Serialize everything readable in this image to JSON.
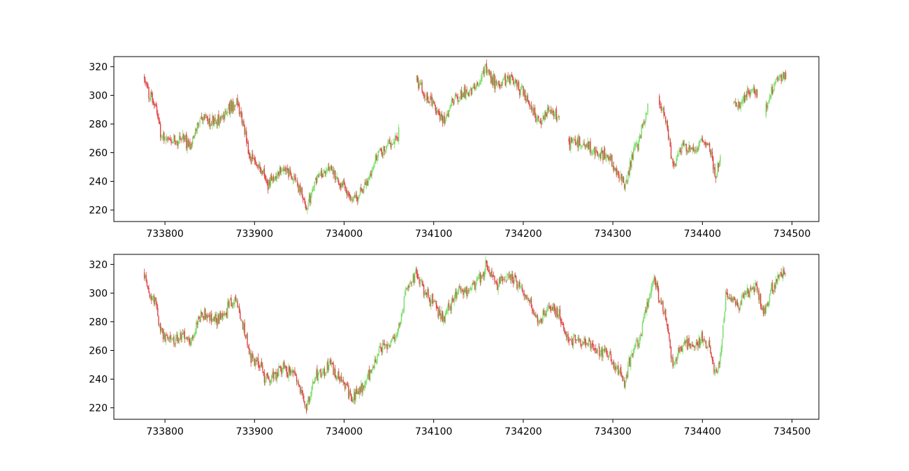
{
  "colors": {
    "up": "#77dd66",
    "down": "#dd4444",
    "axes": "#000000"
  },
  "chart_data": [
    {
      "type": "candlestick",
      "title": "",
      "xlabel": "",
      "ylabel": "",
      "xlim": [
        733743,
        734530
      ],
      "ylim": [
        212,
        327
      ],
      "x_ticks": [
        733800,
        733900,
        734000,
        734100,
        734200,
        734300,
        734400,
        734500
      ],
      "y_ticks": [
        220,
        240,
        260,
        280,
        300,
        320
      ],
      "x_range": [
        733777,
        734493
      ],
      "gaps": [
        [
          734062,
          734080
        ],
        [
          734241,
          734250
        ],
        [
          734340,
          734351
        ],
        [
          734421,
          734434
        ],
        [
          734462,
          734470
        ]
      ],
      "anchors": [
        [
          733777,
          314
        ],
        [
          733782,
          300
        ],
        [
          733790,
          292
        ],
        [
          733795,
          272
        ],
        [
          733805,
          268
        ],
        [
          733820,
          270
        ],
        [
          733828,
          265
        ],
        [
          733840,
          285
        ],
        [
          733855,
          281
        ],
        [
          733868,
          288
        ],
        [
          733880,
          295
        ],
        [
          733885,
          283
        ],
        [
          733895,
          257
        ],
        [
          733905,
          250
        ],
        [
          733915,
          238
        ],
        [
          733930,
          248
        ],
        [
          733945,
          244
        ],
        [
          733958,
          220
        ],
        [
          733968,
          242
        ],
        [
          733985,
          250
        ],
        [
          733998,
          238
        ],
        [
          734010,
          226
        ],
        [
          734025,
          238
        ],
        [
          734040,
          262
        ],
        [
          734050,
          265
        ],
        [
          734060,
          272
        ],
        [
          734070,
          303
        ],
        [
          734080,
          312
        ],
        [
          734090,
          300
        ],
        [
          734100,
          293
        ],
        [
          734110,
          282
        ],
        [
          734125,
          300
        ],
        [
          734138,
          302
        ],
        [
          734150,
          308
        ],
        [
          734158,
          318
        ],
        [
          734170,
          307
        ],
        [
          734185,
          312
        ],
        [
          734200,
          303
        ],
        [
          734210,
          290
        ],
        [
          734218,
          280
        ],
        [
          734228,
          290
        ],
        [
          734240,
          285
        ],
        [
          734250,
          266
        ],
        [
          734262,
          267
        ],
        [
          734275,
          264
        ],
        [
          734285,
          260
        ],
        [
          734295,
          257
        ],
        [
          734305,
          246
        ],
        [
          734313,
          238
        ],
        [
          734320,
          254
        ],
        [
          734330,
          270
        ],
        [
          734340,
          293
        ],
        [
          734345,
          310
        ],
        [
          734350,
          302
        ],
        [
          734360,
          280
        ],
        [
          734367,
          250
        ],
        [
          734378,
          265
        ],
        [
          734390,
          262
        ],
        [
          734400,
          268
        ],
        [
          734408,
          264
        ],
        [
          734414,
          244
        ],
        [
          734420,
          255
        ],
        [
          734426,
          298
        ],
        [
          734440,
          292
        ],
        [
          734452,
          302
        ],
        [
          734460,
          305
        ],
        [
          734468,
          284
        ],
        [
          734475,
          300
        ],
        [
          734485,
          312
        ],
        [
          734493,
          313
        ]
      ]
    },
    {
      "type": "candlestick",
      "title": "",
      "xlabel": "",
      "ylabel": "",
      "xlim": [
        733743,
        734530
      ],
      "ylim": [
        212,
        327
      ],
      "x_ticks": [
        733800,
        733900,
        734000,
        734100,
        734200,
        734300,
        734400,
        734500
      ],
      "y_ticks": [
        220,
        240,
        260,
        280,
        300,
        320
      ],
      "x_range": [
        733777,
        734493
      ],
      "gaps": [],
      "anchors": [
        [
          733777,
          314
        ],
        [
          733782,
          300
        ],
        [
          733790,
          292
        ],
        [
          733795,
          272
        ],
        [
          733805,
          268
        ],
        [
          733820,
          270
        ],
        [
          733828,
          265
        ],
        [
          733840,
          285
        ],
        [
          733855,
          281
        ],
        [
          733868,
          288
        ],
        [
          733880,
          295
        ],
        [
          733885,
          283
        ],
        [
          733895,
          257
        ],
        [
          733905,
          250
        ],
        [
          733915,
          238
        ],
        [
          733930,
          248
        ],
        [
          733945,
          244
        ],
        [
          733958,
          220
        ],
        [
          733968,
          242
        ],
        [
          733985,
          250
        ],
        [
          733998,
          238
        ],
        [
          734010,
          226
        ],
        [
          734025,
          238
        ],
        [
          734040,
          262
        ],
        [
          734050,
          265
        ],
        [
          734060,
          272
        ],
        [
          734070,
          303
        ],
        [
          734080,
          312
        ],
        [
          734090,
          300
        ],
        [
          734100,
          293
        ],
        [
          734110,
          282
        ],
        [
          734125,
          300
        ],
        [
          734138,
          302
        ],
        [
          734150,
          308
        ],
        [
          734158,
          318
        ],
        [
          734170,
          307
        ],
        [
          734185,
          312
        ],
        [
          734200,
          303
        ],
        [
          734210,
          290
        ],
        [
          734218,
          280
        ],
        [
          734228,
          290
        ],
        [
          734240,
          285
        ],
        [
          734250,
          266
        ],
        [
          734262,
          267
        ],
        [
          734275,
          264
        ],
        [
          734285,
          260
        ],
        [
          734295,
          257
        ],
        [
          734305,
          246
        ],
        [
          734313,
          238
        ],
        [
          734320,
          254
        ],
        [
          734330,
          270
        ],
        [
          734340,
          293
        ],
        [
          734345,
          310
        ],
        [
          734350,
          302
        ],
        [
          734360,
          280
        ],
        [
          734367,
          250
        ],
        [
          734378,
          265
        ],
        [
          734390,
          262
        ],
        [
          734400,
          268
        ],
        [
          734408,
          264
        ],
        [
          734414,
          244
        ],
        [
          734420,
          255
        ],
        [
          734426,
          298
        ],
        [
          734440,
          292
        ],
        [
          734452,
          302
        ],
        [
          734460,
          305
        ],
        [
          734468,
          284
        ],
        [
          734475,
          300
        ],
        [
          734485,
          312
        ],
        [
          734493,
          313
        ]
      ]
    }
  ]
}
